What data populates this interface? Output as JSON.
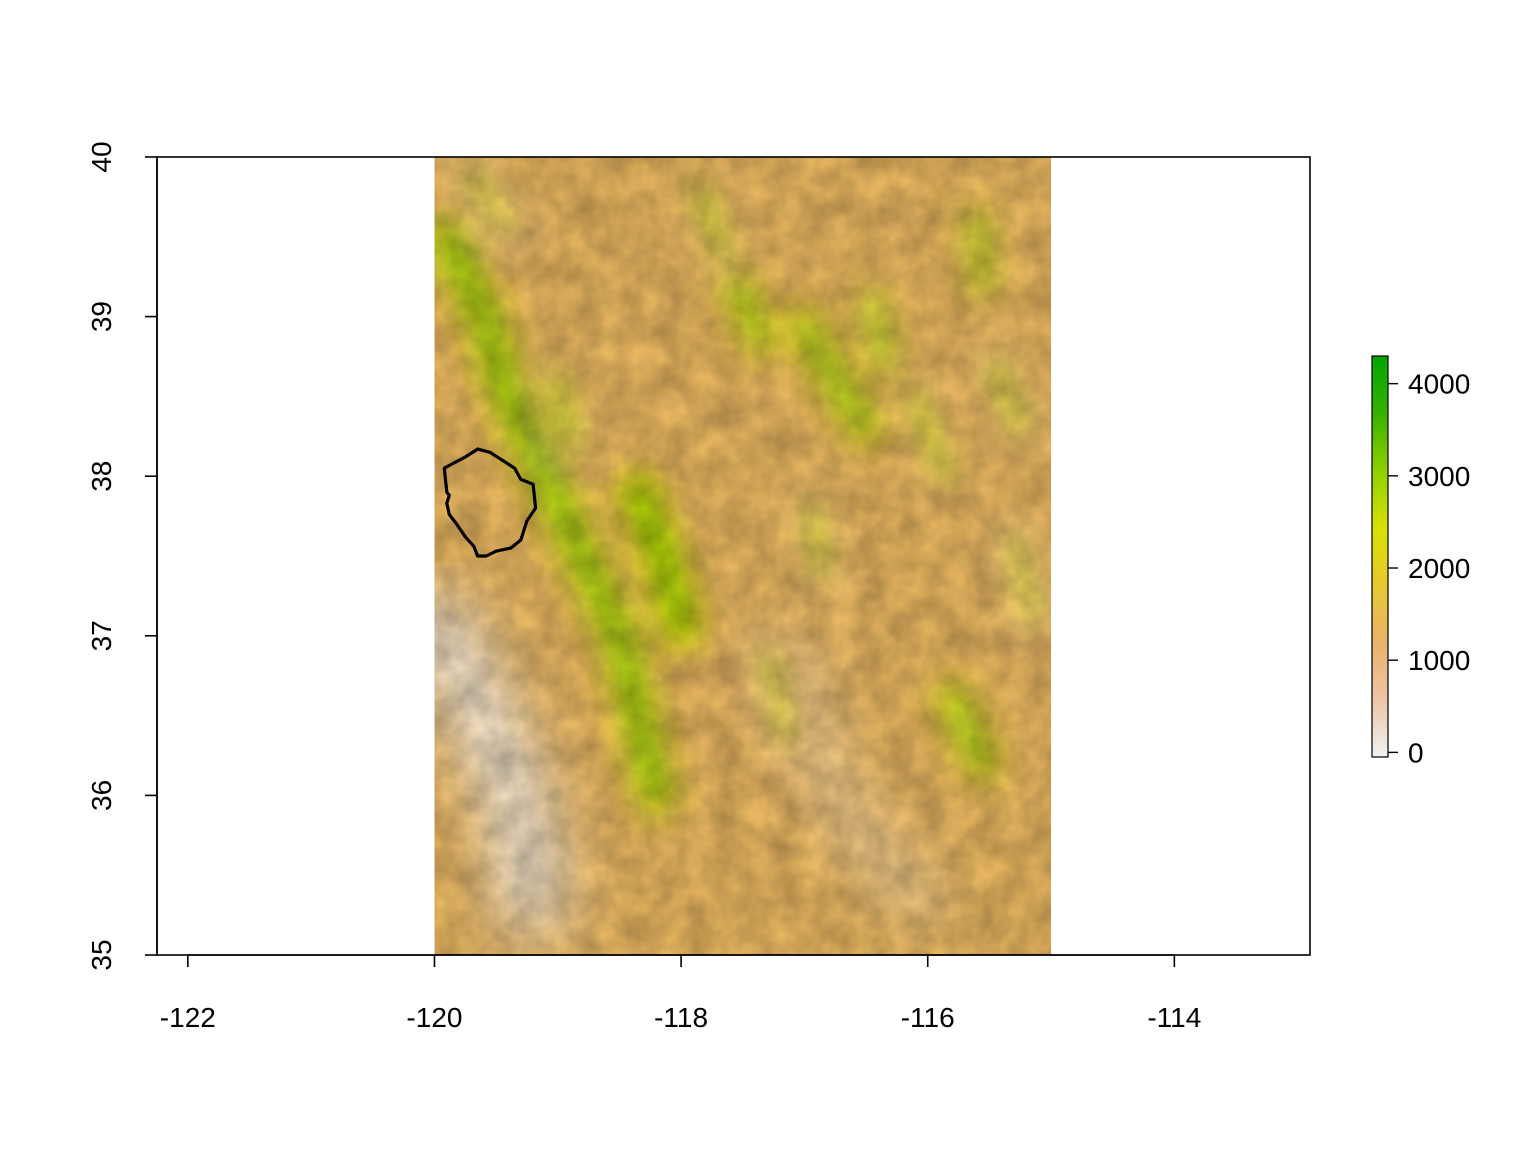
{
  "map": {
    "x_axis": {
      "min": -122.25,
      "max": -112.9,
      "ticks": [
        -122,
        -120,
        -118,
        -116,
        -114
      ],
      "tick_labels": [
        "-122",
        "-120",
        "-118",
        "-116",
        "-114"
      ]
    },
    "y_axis": {
      "min": 35,
      "max": 40,
      "ticks": [
        35,
        36,
        37,
        38,
        39,
        40
      ],
      "tick_labels": [
        "35",
        "36",
        "37",
        "38",
        "39",
        "40"
      ]
    },
    "raster_extent": {
      "lon_min": -120,
      "lon_max": -115,
      "lat_min": 35,
      "lat_max": 40
    },
    "ranges": [
      {
        "path": [
          [
            -119.9,
            39.5
          ],
          [
            -119.6,
            39.0
          ],
          [
            -119.4,
            38.5
          ],
          [
            -119.1,
            38.0
          ],
          [
            -118.8,
            37.5
          ],
          [
            -118.5,
            37.0
          ],
          [
            -118.35,
            36.5
          ],
          [
            -118.2,
            36.0
          ]
        ],
        "elev": 3500
      },
      {
        "path": [
          [
            -118.35,
            37.9
          ],
          [
            -118.15,
            37.5
          ],
          [
            -118.0,
            37.05
          ]
        ],
        "elev": 3600
      },
      {
        "path": [
          [
            -117.55,
            39.2
          ],
          [
            -117.35,
            38.85
          ]
        ],
        "elev": 3100
      },
      {
        "path": [
          [
            -117.0,
            38.95
          ],
          [
            -116.75,
            38.6
          ],
          [
            -116.5,
            38.3
          ]
        ],
        "elev": 3200
      },
      {
        "path": [
          [
            -116.45,
            39.1
          ],
          [
            -116.35,
            38.7
          ]
        ],
        "elev": 2800
      },
      {
        "path": [
          [
            -115.6,
            39.6
          ],
          [
            -115.55,
            39.2
          ]
        ],
        "elev": 2800
      },
      {
        "path": [
          [
            -119.0,
            38.6
          ],
          [
            -118.9,
            38.2
          ]
        ],
        "elev": 2600
      },
      {
        "path": [
          [
            -115.8,
            36.6
          ],
          [
            -115.55,
            36.2
          ]
        ],
        "elev": 3200
      },
      {
        "path": [
          [
            -117.85,
            39.8
          ],
          [
            -117.65,
            39.4
          ]
        ],
        "elev": 2500
      },
      {
        "path": [
          [
            -116.95,
            37.8
          ],
          [
            -116.85,
            37.4
          ]
        ],
        "elev": 2400
      },
      {
        "path": [
          [
            -117.3,
            36.9
          ],
          [
            -117.15,
            36.35
          ]
        ],
        "elev": 2300
      },
      {
        "path": [
          [
            -116.1,
            38.5
          ],
          [
            -115.85,
            38.0
          ]
        ],
        "elev": 2500
      },
      {
        "path": [
          [
            -115.45,
            38.7
          ],
          [
            -115.25,
            38.3
          ]
        ],
        "elev": 2400
      },
      {
        "path": [
          [
            -115.3,
            37.6
          ],
          [
            -115.15,
            37.1
          ]
        ],
        "elev": 2300
      },
      {
        "path": [
          [
            -119.7,
            39.9
          ],
          [
            -119.4,
            39.55
          ]
        ],
        "elev": 2300
      }
    ],
    "lowlands": [
      {
        "path": [
          [
            -120.0,
            37.1
          ],
          [
            -119.6,
            36.5
          ],
          [
            -119.3,
            35.9
          ],
          [
            -119.2,
            35.3
          ]
        ],
        "width": 0.5,
        "elev": 60
      },
      {
        "path": [
          [
            -117.15,
            36.9
          ],
          [
            -116.95,
            36.4
          ],
          [
            -116.75,
            36.0
          ],
          [
            -116.4,
            35.6
          ],
          [
            -116.0,
            35.3
          ]
        ],
        "width": 0.14,
        "elev": -20
      }
    ],
    "watershed_polygon": [
      [
        -119.9,
        37.9
      ],
      [
        -119.92,
        38.05
      ],
      [
        -119.85,
        38.08
      ],
      [
        -119.75,
        38.12
      ],
      [
        -119.65,
        38.17
      ],
      [
        -119.55,
        38.15
      ],
      [
        -119.45,
        38.1
      ],
      [
        -119.35,
        38.05
      ],
      [
        -119.3,
        37.98
      ],
      [
        -119.2,
        37.95
      ],
      [
        -119.18,
        37.8
      ],
      [
        -119.25,
        37.72
      ],
      [
        -119.3,
        37.6
      ],
      [
        -119.38,
        37.55
      ],
      [
        -119.5,
        37.53
      ],
      [
        -119.58,
        37.5
      ],
      [
        -119.65,
        37.5
      ],
      [
        -119.68,
        37.56
      ],
      [
        -119.75,
        37.62
      ],
      [
        -119.82,
        37.7
      ],
      [
        -119.88,
        37.76
      ],
      [
        -119.9,
        37.83
      ],
      [
        -119.88,
        37.88
      ]
    ],
    "legend": {
      "tick_values": [
        0,
        1000,
        2000,
        3000,
        4000
      ],
      "tick_labels": [
        "0",
        "1000",
        "2000",
        "3000",
        "4000"
      ],
      "min": -50,
      "max": 4300,
      "colors": [
        "#f2f2f2",
        "#eec4a7",
        "#e8b26a",
        "#e7c830",
        "#d9e100",
        "#8fd000",
        "#38b100",
        "#00a600"
      ]
    }
  }
}
